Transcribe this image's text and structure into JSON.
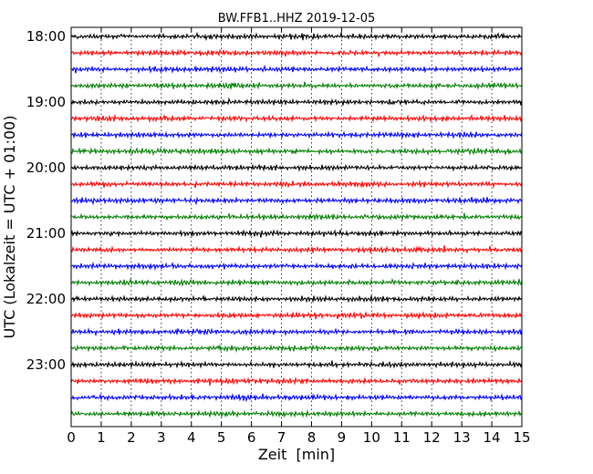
{
  "chart_data": {
    "type": "line",
    "title": "BW.FFB1..HHZ 2019-12-05",
    "xlabel": "Zeit  [min]",
    "ylabel": "UTC (Lokalzeit = UTC + 01:00)",
    "xlim": [
      0,
      15
    ],
    "x_ticks": [
      "0",
      "1",
      "2",
      "3",
      "4",
      "5",
      "6",
      "7",
      "8",
      "9",
      "10",
      "11",
      "12",
      "13",
      "14",
      "15"
    ],
    "y_tick_labels": [
      "18:00",
      "19:00",
      "20:00",
      "21:00",
      "22:00",
      "23:00"
    ],
    "grid": "vertical dotted lines at each minute",
    "trace_colors": [
      "#000000",
      "#ff0000",
      "#0000ff",
      "#007f00"
    ],
    "trace_count": 24,
    "trace_interval_minutes": 15,
    "first_trace_start": "18:00",
    "series": [
      {
        "start": "18:00",
        "color": "#000000"
      },
      {
        "start": "18:15",
        "color": "#ff0000"
      },
      {
        "start": "18:30",
        "color": "#0000ff"
      },
      {
        "start": "18:45",
        "color": "#007f00"
      },
      {
        "start": "19:00",
        "color": "#000000"
      },
      {
        "start": "19:15",
        "color": "#ff0000"
      },
      {
        "start": "19:30",
        "color": "#0000ff"
      },
      {
        "start": "19:45",
        "color": "#007f00"
      },
      {
        "start": "20:00",
        "color": "#000000"
      },
      {
        "start": "20:15",
        "color": "#ff0000"
      },
      {
        "start": "20:30",
        "color": "#0000ff"
      },
      {
        "start": "20:45",
        "color": "#007f00"
      },
      {
        "start": "21:00",
        "color": "#000000"
      },
      {
        "start": "21:15",
        "color": "#ff0000"
      },
      {
        "start": "21:30",
        "color": "#0000ff"
      },
      {
        "start": "21:45",
        "color": "#007f00"
      },
      {
        "start": "22:00",
        "color": "#000000"
      },
      {
        "start": "22:15",
        "color": "#ff0000"
      },
      {
        "start": "22:30",
        "color": "#0000ff"
      },
      {
        "start": "22:45",
        "color": "#007f00"
      },
      {
        "start": "23:00",
        "color": "#000000"
      },
      {
        "start": "23:15",
        "color": "#ff0000"
      },
      {
        "start": "23:30",
        "color": "#0000ff"
      },
      {
        "start": "23:45",
        "color": "#007f00"
      }
    ]
  }
}
